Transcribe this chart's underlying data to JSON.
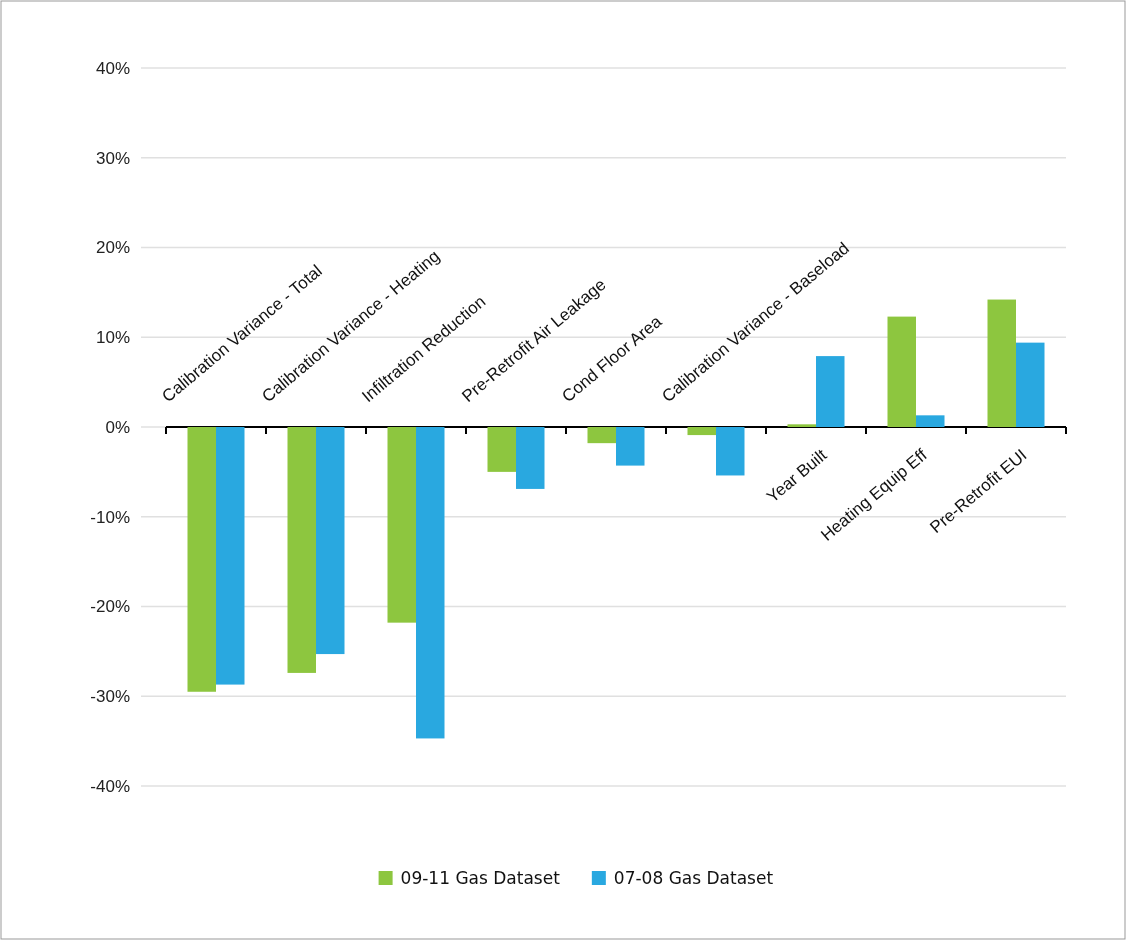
{
  "chart_data": {
    "type": "bar",
    "categories": [
      "Calibration Variance - Total",
      "Calibration Variance - Heating",
      "Infiltration Reduction",
      "Pre-Retrofit Air Leakage",
      "Cond Floor Area",
      "Calibration Variance - Baseload",
      "Year Built",
      "Heating Equip Eff",
      "Pre-Retrofit EUI"
    ],
    "series": [
      {
        "name": "09-11 Gas Dataset",
        "color": "#8dc63f",
        "values": [
          -29.5,
          -27.4,
          -21.8,
          -5.0,
          -1.8,
          -0.9,
          0.3,
          12.3,
          14.2
        ]
      },
      {
        "name": "07-08 Gas Dataset",
        "color": "#29a8e0",
        "values": [
          -28.7,
          -25.3,
          -34.7,
          -6.9,
          -4.3,
          -5.4,
          7.9,
          1.3,
          9.4
        ]
      }
    ],
    "ylim": [
      -40,
      40
    ],
    "yticks": [
      {
        "value": -40,
        "label": "-40%"
      },
      {
        "value": -30,
        "label": "-30%"
      },
      {
        "value": -20,
        "label": "-20%"
      },
      {
        "value": -10,
        "label": "-10%"
      },
      {
        "value": 0,
        "label": "0%"
      },
      {
        "value": 10,
        "label": "10%"
      },
      {
        "value": 20,
        "label": "20%"
      },
      {
        "value": 30,
        "label": "30%"
      },
      {
        "value": 40,
        "label": "40%"
      }
    ],
    "grid": "y",
    "legend": "bottom"
  }
}
